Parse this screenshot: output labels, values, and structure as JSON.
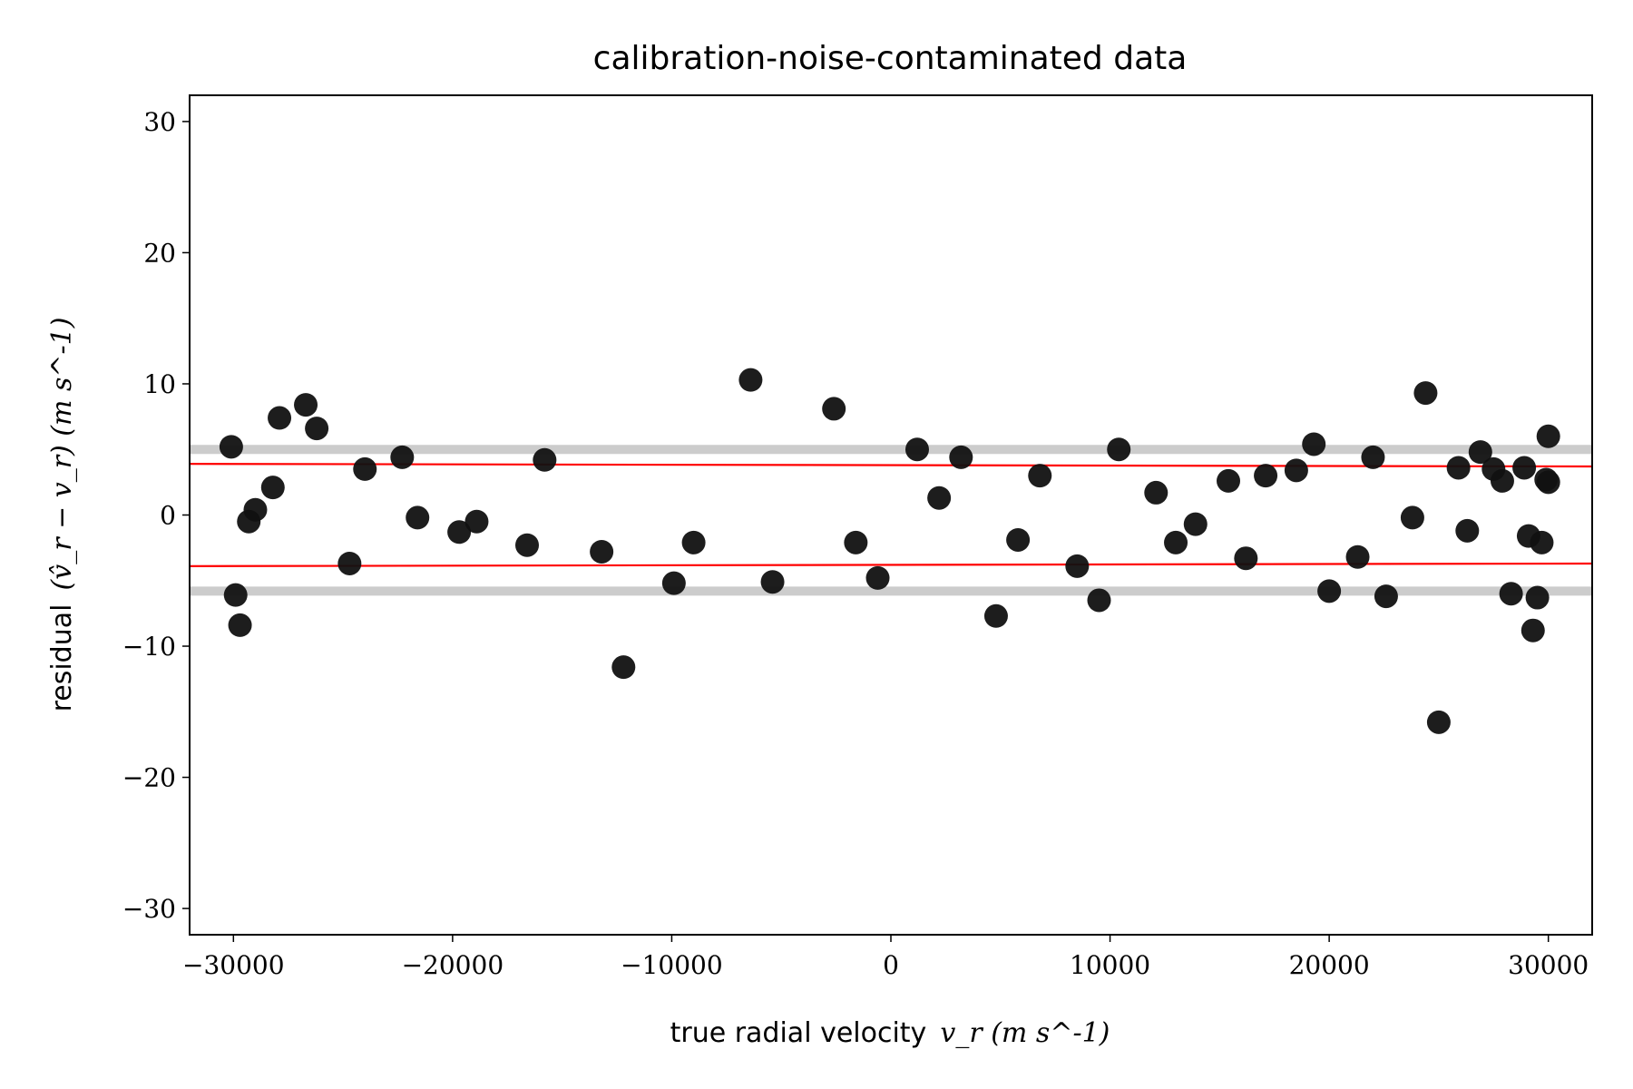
{
  "chart_data": {
    "type": "scatter",
    "title": "calibration-noise-contaminated data",
    "xlabel": {
      "text": "true radial velocity",
      "math": "v_r (m s^-1)"
    },
    "ylabel": {
      "text": "residual",
      "math": "(v̂_r − v_r) (m s^-1)"
    },
    "xlim": [
      -32000,
      32000
    ],
    "ylim": [
      -32,
      32
    ],
    "xticks": [
      -30000,
      -20000,
      -10000,
      0,
      10000,
      20000,
      30000
    ],
    "xtick_labels": [
      "−30000",
      "−20000",
      "−10000",
      "0",
      "10000",
      "20000",
      "30000"
    ],
    "yticks": [
      -30,
      -20,
      -10,
      0,
      10,
      20,
      30
    ],
    "ytick_labels": [
      "−30",
      "−20",
      "−10",
      "0",
      "10",
      "20",
      "30"
    ],
    "grid": false,
    "colors": {
      "points": "#111111",
      "fit_lines": "#ff0000",
      "bands": "#cccccc"
    },
    "bands": [
      {
        "y": 5.0
      },
      {
        "y": -5.8
      }
    ],
    "fit_lines": [
      {
        "x": [
          -32000,
          32000
        ],
        "y": [
          3.9,
          3.7
        ]
      },
      {
        "x": [
          -32000,
          32000
        ],
        "y": [
          -3.9,
          -3.7
        ]
      }
    ],
    "points": {
      "x": [
        -30100,
        -29900,
        -29700,
        -29300,
        -29000,
        -28200,
        -27900,
        -26700,
        -26200,
        -24700,
        -24000,
        -22300,
        -21600,
        -19700,
        -18900,
        -16600,
        -15800,
        -13200,
        -12200,
        -9900,
        -9000,
        -6400,
        -5400,
        -2600,
        -1600,
        -600,
        1200,
        2200,
        3200,
        4800,
        5800,
        6800,
        8500,
        9500,
        10400,
        12100,
        13000,
        13900,
        15400,
        16200,
        17100,
        18500,
        19300,
        20000,
        21300,
        22000,
        22600,
        23800,
        24400,
        25000,
        25900,
        26300,
        26900,
        27500,
        27900,
        28300,
        28900,
        29100,
        29300,
        29500,
        29700,
        29900,
        30000,
        30000
      ],
      "y": [
        5.2,
        -6.1,
        -8.4,
        -0.5,
        0.4,
        2.1,
        7.4,
        8.4,
        6.6,
        -3.7,
        3.5,
        4.4,
        -0.2,
        -1.3,
        -0.5,
        -2.3,
        4.2,
        -2.8,
        -11.6,
        -5.2,
        -2.1,
        10.3,
        -5.1,
        8.1,
        -2.1,
        -4.8,
        5.0,
        1.3,
        4.4,
        -7.7,
        -1.9,
        3.0,
        -3.9,
        -6.5,
        5.0,
        1.7,
        -2.1,
        -0.7,
        2.6,
        -3.3,
        3.0,
        3.4,
        5.4,
        -5.8,
        -3.2,
        4.4,
        -6.2,
        -0.2,
        9.3,
        -15.8,
        3.6,
        -1.2,
        4.8,
        3.5,
        2.6,
        -6.0,
        3.6,
        -1.6,
        -8.8,
        -6.3,
        -2.1,
        2.7,
        6.0,
        2.5
      ]
    }
  }
}
